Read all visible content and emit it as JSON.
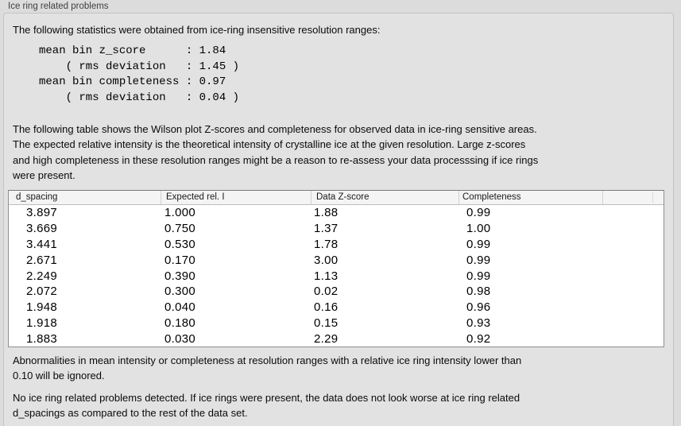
{
  "panel": {
    "label": "Ice ring related problems"
  },
  "intro": "The following statistics were obtained from ice-ring insensitive resolution ranges:",
  "stats_block": "mean bin z_score      : 1.84\n    ( rms deviation   : 1.45 )\nmean bin completeness : 0.97\n    ( rms deviation   : 0.04 )",
  "stats": {
    "mean_bin_z_score": "1.84",
    "z_score_rms_deviation": "1.45",
    "mean_bin_completeness": "0.97",
    "completeness_rms_deviation": "0.04"
  },
  "table_intro": "The following table shows the Wilson plot Z-scores and completeness for observed data in ice-ring sensitive areas.\nThe expected relative intensity is the theoretical intensity of crystalline ice at the given resolution. Large z-scores\nand high completeness in these resolution ranges might be a reason to re-assess your data processsing if ice rings\nwere present.",
  "table": {
    "columns": [
      "d_spacing",
      "Expected rel. I",
      "Data Z-score",
      "Completeness"
    ],
    "rows": [
      [
        "3.897",
        "1.000",
        "1.88",
        "0.99"
      ],
      [
        "3.669",
        "0.750",
        "1.37",
        "1.00"
      ],
      [
        "3.441",
        "0.530",
        "1.78",
        "0.99"
      ],
      [
        "2.671",
        "0.170",
        "3.00",
        "0.99"
      ],
      [
        "2.249",
        "0.390",
        "1.13",
        "0.99"
      ],
      [
        "2.072",
        "0.300",
        "0.02",
        "0.98"
      ],
      [
        "1.948",
        "0.040",
        "0.16",
        "0.96"
      ],
      [
        "1.918",
        "0.180",
        "0.15",
        "0.93"
      ],
      [
        "1.883",
        "0.030",
        "2.29",
        "0.92"
      ]
    ]
  },
  "note": "Abnormalities in mean intensity or completeness at resolution ranges with a relative ice ring intensity lower than\n0.10 will be ignored.",
  "conclusion": "No ice ring related problems detected. If ice rings were present, the data does not look worse at ice ring related\nd_spacings as compared to the rest of the data set.",
  "colors": {
    "page_bg": "#dcdcdc",
    "panel_bg": "#e2e2e2",
    "panel_border": "#c3c3c3",
    "table_header_bg": "#f4f4f4",
    "table_border": "#8f8f8f",
    "table_body_bg": "#ffffff"
  }
}
